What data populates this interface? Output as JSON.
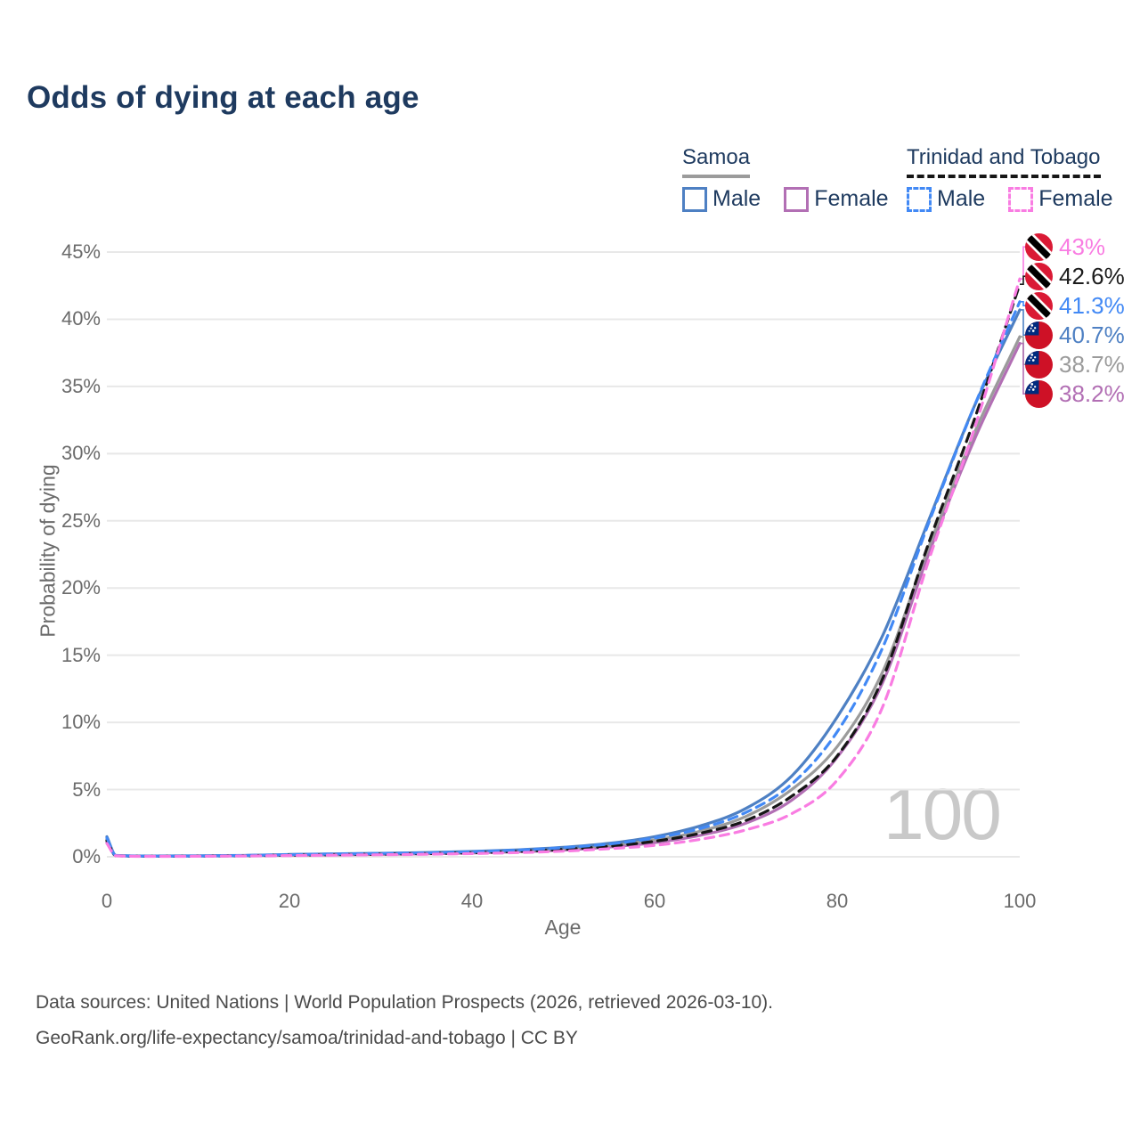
{
  "title": "Odds of dying at each age",
  "watermark": "100",
  "legend": {
    "groups": [
      {
        "name": "Samoa",
        "underline_color": "#9b9b9b",
        "underline_dashed": false,
        "items": [
          {
            "label": "Male",
            "color": "#4e80c3",
            "dashed": false
          },
          {
            "label": "Female",
            "color": "#b26fb4",
            "dashed": false
          }
        ]
      },
      {
        "name": "Trinidad and Tobago",
        "underline_color": "#161616",
        "underline_dashed": true,
        "items": [
          {
            "label": "Male",
            "color": "#4289f5",
            "dashed": true
          },
          {
            "label": "Female",
            "color": "#f97ce2",
            "dashed": true
          }
        ]
      }
    ]
  },
  "chart_data": {
    "type": "line",
    "title": "Odds of dying at each age",
    "xlabel": "Age",
    "ylabel": "Probability of dying",
    "xlim": [
      0,
      100
    ],
    "ylim": [
      0,
      45
    ],
    "xticks": [
      0,
      20,
      40,
      60,
      80,
      100
    ],
    "yticks": [
      0,
      5,
      10,
      15,
      20,
      25,
      30,
      35,
      40,
      45
    ],
    "grid": "horizontal",
    "legend_position": "top-right",
    "x": [
      0,
      1,
      5,
      10,
      15,
      20,
      25,
      30,
      35,
      40,
      45,
      50,
      55,
      60,
      65,
      70,
      75,
      80,
      85,
      90,
      95,
      100
    ],
    "series": [
      {
        "name": "Samoa Female",
        "color": "#b26fb4",
        "dashed": false,
        "values": [
          1.1,
          0.08,
          0.04,
          0.05,
          0.08,
          0.11,
          0.14,
          0.18,
          0.22,
          0.28,
          0.37,
          0.5,
          0.72,
          1.05,
          1.6,
          2.5,
          4.2,
          7.4,
          13.0,
          22.5,
          31.0,
          38.2
        ]
      },
      {
        "name": "Samoa (both sexes)",
        "color": "#9b9b9b",
        "dashed": false,
        "values": [
          1.3,
          0.09,
          0.05,
          0.06,
          0.09,
          0.14,
          0.18,
          0.22,
          0.27,
          0.34,
          0.44,
          0.6,
          0.85,
          1.25,
          1.9,
          3.0,
          5.0,
          8.2,
          13.8,
          23.0,
          31.5,
          38.7
        ]
      },
      {
        "name": "Samoa Male",
        "color": "#4e80c3",
        "dashed": false,
        "values": [
          1.5,
          0.1,
          0.06,
          0.07,
          0.1,
          0.17,
          0.22,
          0.26,
          0.32,
          0.4,
          0.52,
          0.7,
          1.0,
          1.5,
          2.3,
          3.6,
          6.0,
          10.4,
          16.5,
          25.0,
          33.5,
          40.7
        ]
      },
      {
        "name": "Trinidad and Tobago (both sexes)",
        "color": "#161616",
        "dashed": true,
        "values": [
          1.2,
          0.08,
          0.04,
          0.05,
          0.08,
          0.12,
          0.16,
          0.2,
          0.24,
          0.3,
          0.4,
          0.55,
          0.78,
          1.15,
          1.75,
          2.7,
          4.5,
          7.5,
          13.3,
          23.3,
          32.5,
          42.6
        ]
      },
      {
        "name": "Trinidad and Tobago Male",
        "color": "#4289f5",
        "dashed": true,
        "values": [
          1.4,
          0.09,
          0.05,
          0.06,
          0.1,
          0.16,
          0.21,
          0.25,
          0.3,
          0.38,
          0.5,
          0.68,
          0.95,
          1.4,
          2.1,
          3.3,
          5.4,
          9.3,
          15.6,
          24.8,
          33.5,
          41.3
        ]
      },
      {
        "name": "Trinidad and Tobago Female",
        "color": "#f97ce2",
        "dashed": true,
        "values": [
          1.0,
          0.07,
          0.03,
          0.04,
          0.06,
          0.09,
          0.12,
          0.15,
          0.19,
          0.24,
          0.31,
          0.42,
          0.6,
          0.85,
          1.3,
          2.0,
          3.2,
          5.7,
          11.2,
          22.0,
          31.8,
          43.0
        ]
      }
    ],
    "end_labels": [
      {
        "text": "43%",
        "value": 43.0,
        "color": "#f97ce2",
        "flag": "trinidad-and-tobago",
        "series": "Trinidad and Tobago Female"
      },
      {
        "text": "42.6%",
        "value": 42.6,
        "color": "#1c1c1c",
        "flag": "trinidad-and-tobago",
        "series": "Trinidad and Tobago (both sexes)"
      },
      {
        "text": "41.3%",
        "value": 41.3,
        "color": "#4289f5",
        "flag": "trinidad-and-tobago",
        "series": "Trinidad and Tobago Male"
      },
      {
        "text": "40.7%",
        "value": 40.7,
        "color": "#4e80c3",
        "flag": "samoa",
        "series": "Samoa Male"
      },
      {
        "text": "38.7%",
        "value": 38.7,
        "color": "#9b9b9b",
        "flag": "samoa",
        "series": "Samoa (both sexes)"
      },
      {
        "text": "38.2%",
        "value": 38.2,
        "color": "#b26fb4",
        "flag": "samoa",
        "series": "Samoa Female"
      }
    ]
  },
  "footer": {
    "line1": "Data sources: United Nations | World Population Prospects (2026, retrieved 2026-03-10).",
    "line2": "GeoRank.org/life-expectancy/samoa/trinidad-and-tobago | CC BY"
  }
}
